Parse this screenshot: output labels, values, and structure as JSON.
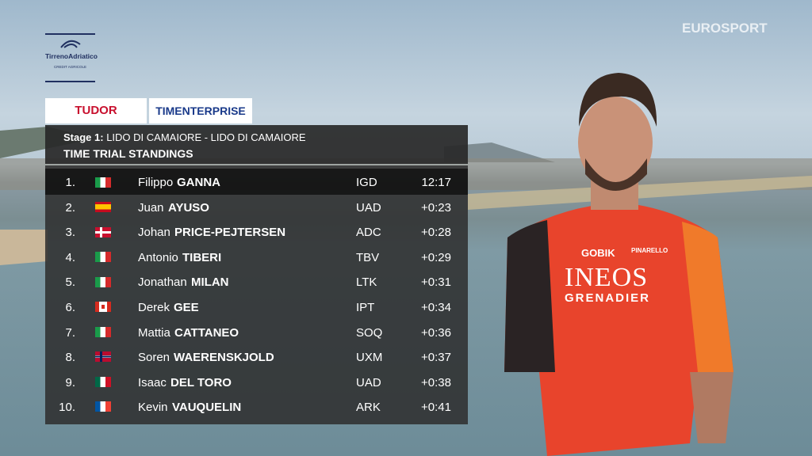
{
  "broadcaster": "EUROSPORT",
  "logo": {
    "title": "TirrenoAdriatico",
    "sponsor": "CREDIT AGRICOLE"
  },
  "sponsors": [
    "TUDOR",
    "TIMENTERPRISE"
  ],
  "standings": {
    "stage_label": "Stage 1:",
    "stage": "LIDO DI CAMAIORE - LIDO DI CAMAIORE",
    "title": "TIME TRIAL STANDINGS",
    "rows": [
      [
        "1.",
        "Filippo",
        "GANNA",
        "IGD",
        "12:17"
      ],
      [
        "2.",
        "Juan",
        "AYUSO",
        "UAD",
        "+0:23"
      ],
      [
        "3.",
        "Johan",
        "PRICE-PEJTERSEN",
        "ADC",
        "+0:28"
      ],
      [
        "4.",
        "Antonio",
        "TIBERI",
        "TBV",
        "+0:29"
      ],
      [
        "5.",
        "Jonathan",
        "MILAN",
        "LTK",
        "+0:31"
      ],
      [
        "6.",
        "Derek",
        "GEE",
        "IPT",
        "+0:34"
      ],
      [
        "7.",
        "Mattia",
        "CATTANEO",
        "SOQ",
        "+0:36"
      ],
      [
        "8.",
        "Soren",
        "WAERENSKJOLD",
        "UXM",
        "+0:37"
      ],
      [
        "9.",
        "Isaac",
        "DEL TORO",
        "UAD",
        "+0:38"
      ],
      [
        "10.",
        "Kevin",
        "VAUQUELIN",
        "ARK",
        "+0:41"
      ]
    ]
  },
  "jersey": {
    "brand": "INEOS",
    "sub": "GRENADIER",
    "kit": "GOBIK",
    "bike": "PINARELLO"
  }
}
